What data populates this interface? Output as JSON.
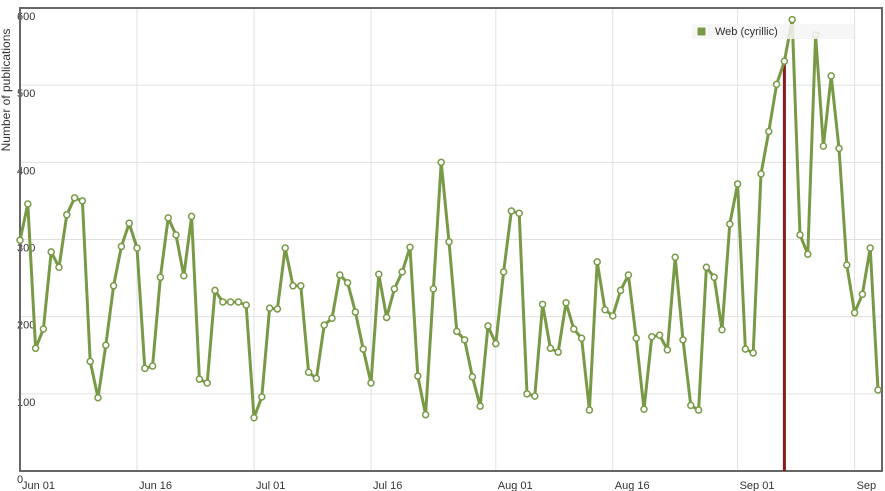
{
  "chart_data": {
    "type": "line",
    "y_label": "Number of publications",
    "categories": [
      "Jun 01",
      null,
      null,
      null,
      null,
      null,
      null,
      null,
      null,
      null,
      null,
      null,
      null,
      null,
      null,
      "Jun 16",
      null,
      null,
      null,
      null,
      null,
      null,
      null,
      null,
      null,
      null,
      null,
      null,
      null,
      null,
      "Jul 01",
      null,
      null,
      null,
      null,
      null,
      null,
      null,
      null,
      null,
      null,
      null,
      null,
      null,
      null,
      "Jul 16",
      null,
      null,
      null,
      null,
      null,
      null,
      null,
      null,
      null,
      null,
      null,
      null,
      null,
      null,
      null,
      "Aug 01",
      null,
      null,
      null,
      null,
      null,
      null,
      null,
      null,
      null,
      null,
      null,
      null,
      null,
      null,
      "Aug 16",
      null,
      null,
      null,
      null,
      null,
      null,
      null,
      null,
      null,
      null,
      null,
      null,
      null,
      null,
      null,
      "Sep 01",
      null,
      null,
      null,
      null,
      null,
      null,
      null,
      null,
      null,
      null,
      null,
      null,
      null,
      null,
      "Sep",
      null,
      null,
      null
    ],
    "series": [
      {
        "name": "Web (cyrillic)",
        "color": "#789a46",
        "values": [
          299,
          346,
          159,
          184,
          284,
          264,
          332,
          354,
          350,
          142,
          95,
          163,
          240,
          291,
          321,
          289,
          133,
          136,
          251,
          328,
          306,
          253,
          330,
          119,
          114,
          234,
          219,
          219,
          219,
          215,
          69,
          96,
          211,
          210,
          289,
          240,
          240,
          128,
          120,
          189,
          198,
          254,
          244,
          206,
          158,
          114,
          255,
          199,
          236,
          258,
          290,
          123,
          73,
          236,
          400,
          297,
          181,
          170,
          122,
          84,
          188,
          165,
          258,
          337,
          334,
          100,
          97,
          216,
          159,
          154,
          218,
          184,
          172,
          79,
          271,
          209,
          201,
          234,
          254,
          172,
          80,
          174,
          176,
          157,
          277,
          170,
          85,
          79,
          264,
          251,
          183,
          320,
          372,
          158,
          153,
          385,
          440,
          501,
          531,
          585,
          306,
          281,
          565,
          421,
          512,
          418,
          267,
          205,
          229,
          289,
          105
        ]
      }
    ],
    "highlight_index": 98,
    "highlight_color": "#8b1a1a",
    "ylim": [
      0,
      600
    ],
    "yticks": [
      0,
      100,
      200,
      300,
      400,
      500,
      600
    ],
    "grid": true,
    "legend": "top-right"
  }
}
